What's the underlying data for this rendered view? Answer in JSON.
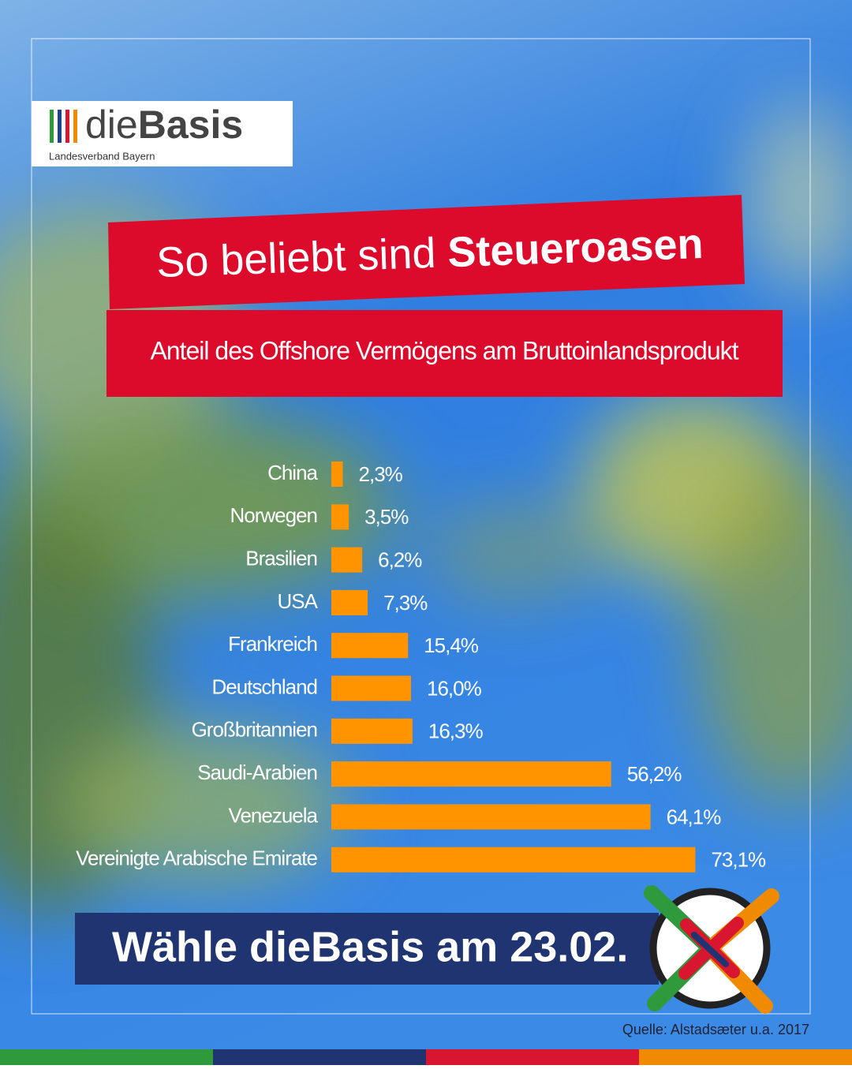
{
  "logo": {
    "name_light": "die",
    "name_bold": "Basis",
    "sub": "Landesverband Bayern"
  },
  "headline": {
    "part1": "So beliebt sind ",
    "part2": "Steueroasen"
  },
  "chart_data": {
    "type": "hbar",
    "title": "Anteil des Offshore Vermögens am Bruttoinlandsprodukt",
    "categories": [
      "China",
      "Norwegen",
      "Brasilien",
      "USA",
      "Frankreich",
      "Deutschland",
      "Großbritannien",
      "Saudi-Arabien",
      "Venezuela",
      "Vereinigte Arabische Emirate"
    ],
    "values": [
      2.3,
      3.5,
      6.2,
      7.3,
      15.4,
      16.0,
      16.3,
      56.2,
      64.1,
      73.1
    ],
    "value_labels": [
      "2,3%",
      "3,5%",
      "6,2%",
      "7,3%",
      "15,4%",
      "16,0%",
      "16,3%",
      "56,2%",
      "64,1%",
      "73,1%"
    ],
    "color": "#ff9300",
    "xlim": [
      0,
      80
    ]
  },
  "footer": {
    "cta": "Wähle dieBasis am 23.02.",
    "source": "Quelle: Alstadsæter u.a. 2017"
  }
}
